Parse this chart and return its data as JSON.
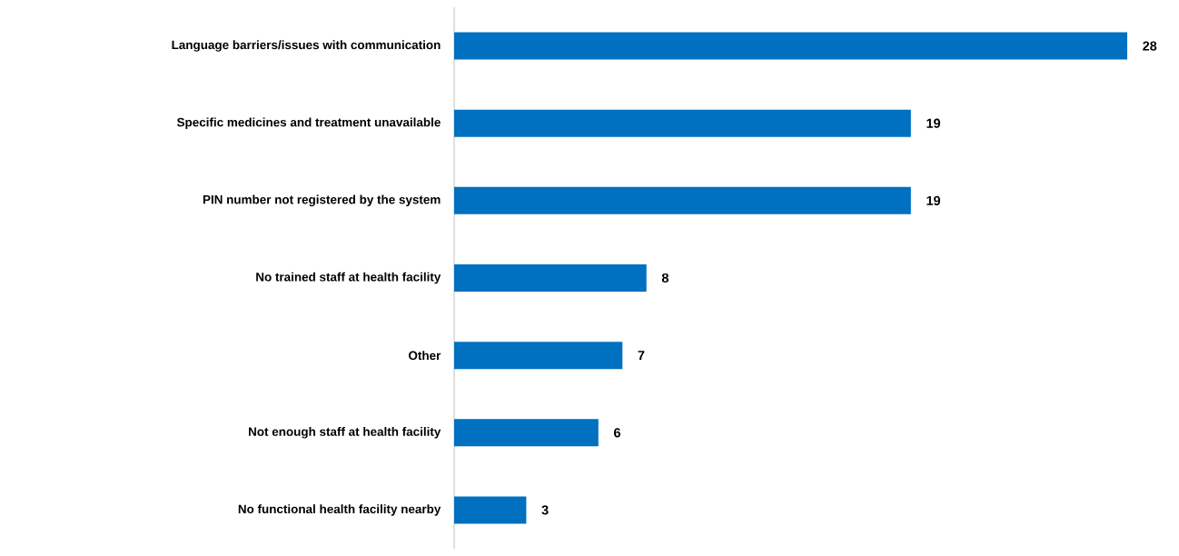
{
  "chart_data": {
    "type": "bar",
    "orientation": "horizontal",
    "categories": [
      "Language barriers/issues with communication",
      "Specific medicines and treatment unavailable",
      "PIN number not registered by the system",
      "No trained staff at health facility",
      "Other",
      "Not enough staff at health facility",
      "No functional health facility nearby"
    ],
    "values": [
      28,
      19,
      19,
      8,
      7,
      6,
      3
    ],
    "color": "#0070c0",
    "data_labels": true
  }
}
